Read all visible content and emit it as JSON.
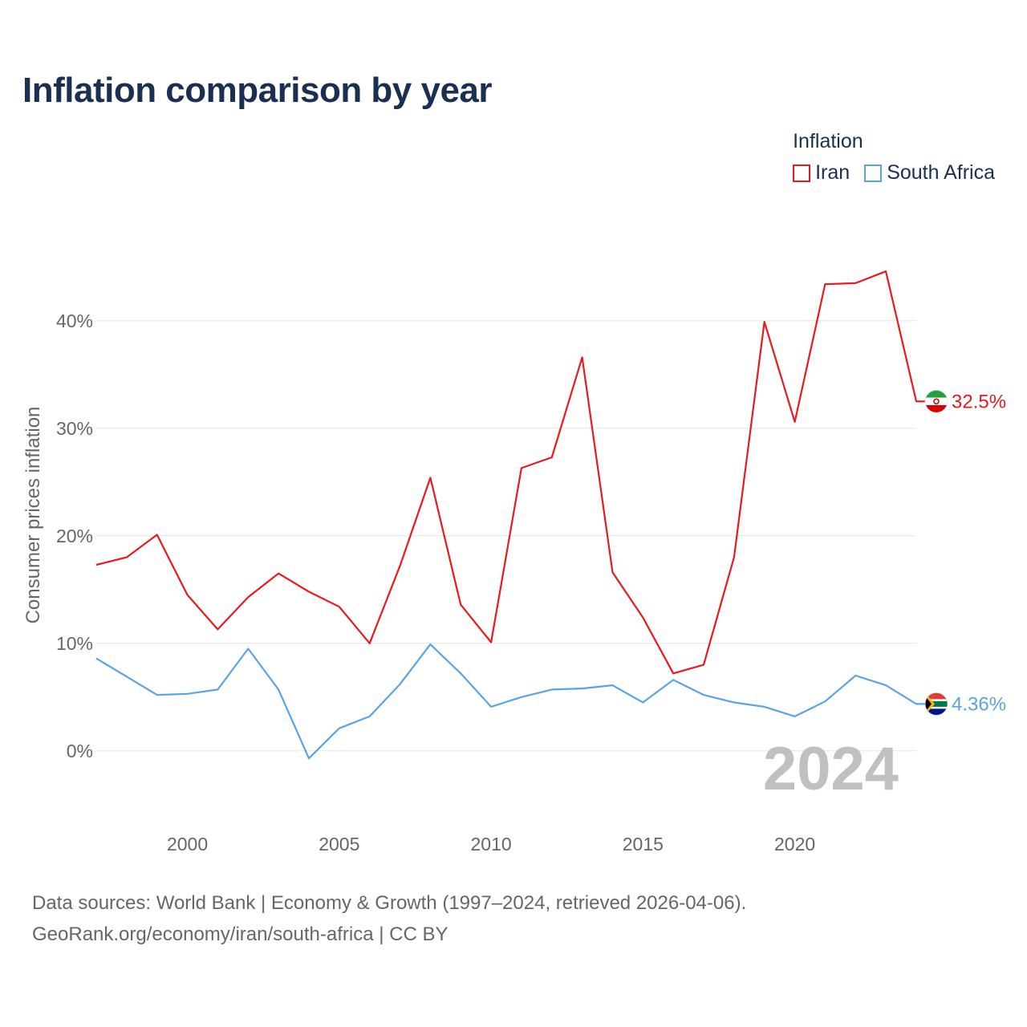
{
  "header": {
    "title": "Inflation comparison by year"
  },
  "legend": {
    "title": "Inflation"
  },
  "chart_data": {
    "type": "line",
    "title": "Inflation comparison by year",
    "ylabel": "Consumer prices inflation",
    "xlabel": "",
    "x": [
      1997,
      1998,
      1999,
      2000,
      2001,
      2002,
      2003,
      2004,
      2005,
      2006,
      2007,
      2008,
      2009,
      2010,
      2011,
      2012,
      2013,
      2014,
      2015,
      2016,
      2017,
      2018,
      2019,
      2020,
      2021,
      2022,
      2023,
      2024
    ],
    "xticks": [
      2000,
      2005,
      2010,
      2015,
      2020
    ],
    "xtick_labels": [
      "2000",
      "2005",
      "2010",
      "2015",
      "2020"
    ],
    "yticks": [
      0,
      10,
      20,
      30,
      40
    ],
    "ytick_labels": [
      "0%",
      "10%",
      "20%",
      "30%",
      "40%"
    ],
    "xlim": [
      1997,
      2024
    ],
    "ylim": [
      -3,
      47
    ],
    "legend_position": "top-right",
    "series": [
      {
        "name": "Iran",
        "color": "#e8191f",
        "end_label": "32.5%",
        "flag_icon": "iran-flag-icon",
        "values": [
          17.3,
          18.0,
          20.1,
          14.5,
          11.3,
          14.3,
          16.5,
          14.8,
          13.4,
          10.0,
          17.2,
          25.4,
          13.6,
          10.1,
          26.3,
          27.3,
          36.6,
          16.6,
          12.4,
          7.2,
          8.0,
          18.0,
          39.9,
          30.6,
          43.4,
          43.5,
          44.6,
          32.5
        ]
      },
      {
        "name": "South Africa",
        "color": "#5ba3e3",
        "end_label": "4.36%",
        "flag_icon": "south-africa-flag-icon",
        "values": [
          8.6,
          6.9,
          5.2,
          5.3,
          5.7,
          9.5,
          5.7,
          -0.7,
          2.1,
          3.2,
          6.2,
          9.9,
          7.2,
          4.1,
          5.0,
          5.7,
          5.8,
          6.1,
          4.5,
          6.6,
          5.2,
          4.5,
          4.1,
          3.2,
          4.6,
          7.0,
          6.1,
          4.36
        ]
      }
    ],
    "year_watermark": "2024"
  },
  "footer": {
    "line1": "Data sources: World Bank | Economy & Growth (1997–2024, retrieved 2026-04-06).",
    "line2": "GeoRank.org/economy/iran/south-africa | CC BY"
  }
}
